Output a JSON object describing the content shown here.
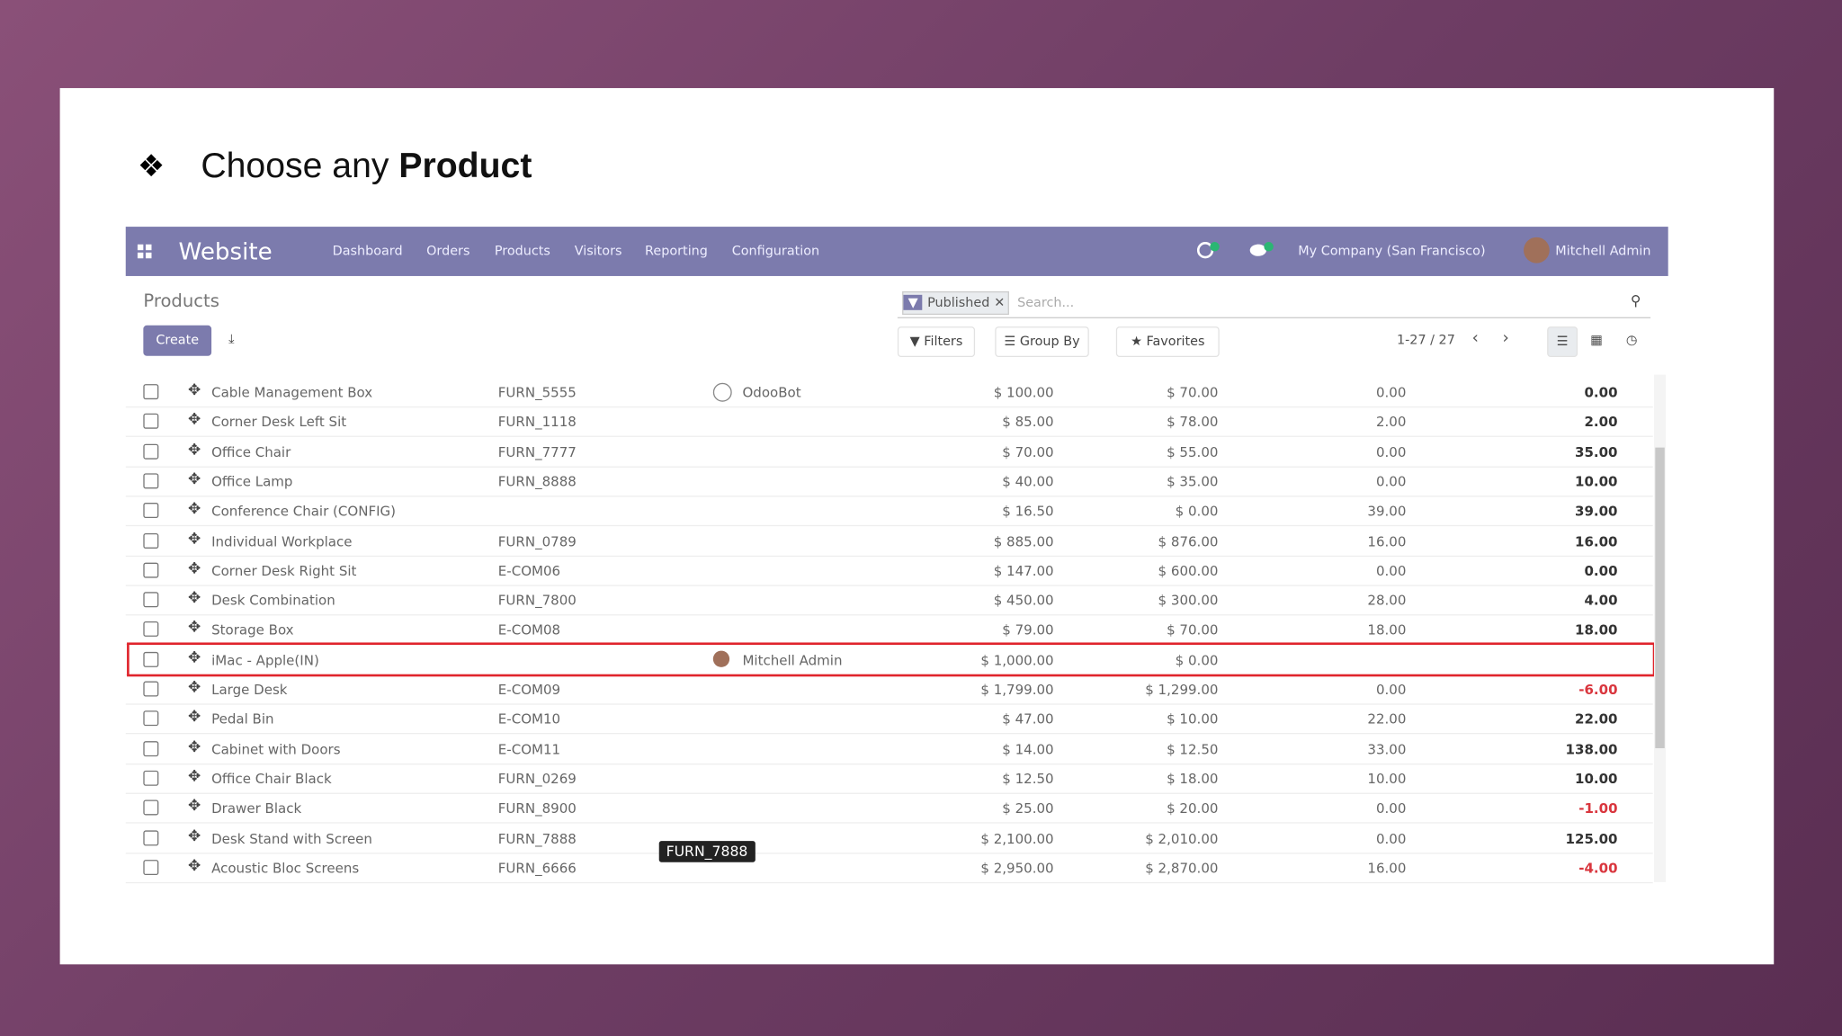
{
  "slide": {
    "title_plain": "Choose any ",
    "title_bold": "Product"
  },
  "navbar": {
    "app": "Website",
    "menu": [
      "Dashboard",
      "Orders",
      "Products",
      "Visitors",
      "Reporting",
      "Configuration"
    ],
    "company": "My Company (San Francisco)",
    "user": "Mitchell Admin"
  },
  "control_panel": {
    "breadcrumb": "Products",
    "create": "Create",
    "facet": "Published",
    "search_placeholder": "Search...",
    "filters": "Filters",
    "group_by": "Group By",
    "favorites": "Favorites",
    "pager": "1-27 / 27"
  },
  "table": {
    "rows": [
      {
        "name": "Cable Management Box",
        "ref": "FURN_5555",
        "responsible": "OdooBot",
        "price": "$ 100.00",
        "cost": "$ 70.00",
        "on_hand": "0.00",
        "forecast": "0.00"
      },
      {
        "name": "Corner Desk Left Sit",
        "ref": "FURN_1118",
        "price": "$ 85.00",
        "cost": "$ 78.00",
        "on_hand": "2.00",
        "forecast": "2.00"
      },
      {
        "name": "Office Chair",
        "ref": "FURN_7777",
        "price": "$ 70.00",
        "cost": "$ 55.00",
        "on_hand": "0.00",
        "forecast": "35.00"
      },
      {
        "name": "Office Lamp",
        "ref": "FURN_8888",
        "price": "$ 40.00",
        "cost": "$ 35.00",
        "on_hand": "0.00",
        "forecast": "10.00"
      },
      {
        "name": "Conference Chair (CONFIG)",
        "price": "$ 16.50",
        "cost": "$ 0.00",
        "on_hand": "39.00",
        "forecast": "39.00"
      },
      {
        "name": "Individual Workplace",
        "ref": "FURN_0789",
        "price": "$ 885.00",
        "cost": "$ 876.00",
        "on_hand": "16.00",
        "forecast": "16.00"
      },
      {
        "name": "Corner Desk Right Sit",
        "ref": "E-COM06",
        "price": "$ 147.00",
        "cost": "$ 600.00",
        "on_hand": "0.00",
        "forecast": "0.00"
      },
      {
        "name": "Desk Combination",
        "ref": "FURN_7800",
        "price": "$ 450.00",
        "cost": "$ 300.00",
        "on_hand": "28.00",
        "forecast": "4.00"
      },
      {
        "name": "Storage Box",
        "ref": "E-COM08",
        "price": "$ 79.00",
        "cost": "$ 70.00",
        "on_hand": "18.00",
        "forecast": "18.00"
      },
      {
        "name": "iMac - Apple(IN)",
        "responsible": "Mitchell Admin",
        "price": "$ 1,000.00",
        "cost": "$ 0.00",
        "highlighted": true
      },
      {
        "name": "Large Desk",
        "ref": "E-COM09",
        "price": "$ 1,799.00",
        "cost": "$ 1,299.00",
        "on_hand": "0.00",
        "forecast": "-6.00"
      },
      {
        "name": "Pedal Bin",
        "ref": "E-COM10",
        "price": "$ 47.00",
        "cost": "$ 10.00",
        "on_hand": "22.00",
        "forecast": "22.00"
      },
      {
        "name": "Cabinet with Doors",
        "ref": "E-COM11",
        "price": "$ 14.00",
        "cost": "$ 12.50",
        "on_hand": "33.00",
        "forecast": "138.00"
      },
      {
        "name": "Office Chair Black",
        "ref": "FURN_0269",
        "price": "$ 12.50",
        "cost": "$ 18.00",
        "on_hand": "10.00",
        "forecast": "10.00"
      },
      {
        "name": "Drawer Black",
        "ref": "FURN_8900",
        "price": "$ 25.00",
        "cost": "$ 20.00",
        "on_hand": "0.00",
        "forecast": "-1.00"
      },
      {
        "name": "Desk Stand with Screen",
        "ref": "FURN_7888",
        "price": "$ 2,100.00",
        "cost": "$ 2,010.00",
        "on_hand": "0.00",
        "forecast": "125.00"
      },
      {
        "name": "Acoustic Bloc Screens",
        "ref": "FURN_6666",
        "price": "$ 2,950.00",
        "cost": "$ 2,870.00",
        "on_hand": "16.00",
        "forecast": "-4.00"
      }
    ]
  },
  "tooltip": "FURN_7888"
}
